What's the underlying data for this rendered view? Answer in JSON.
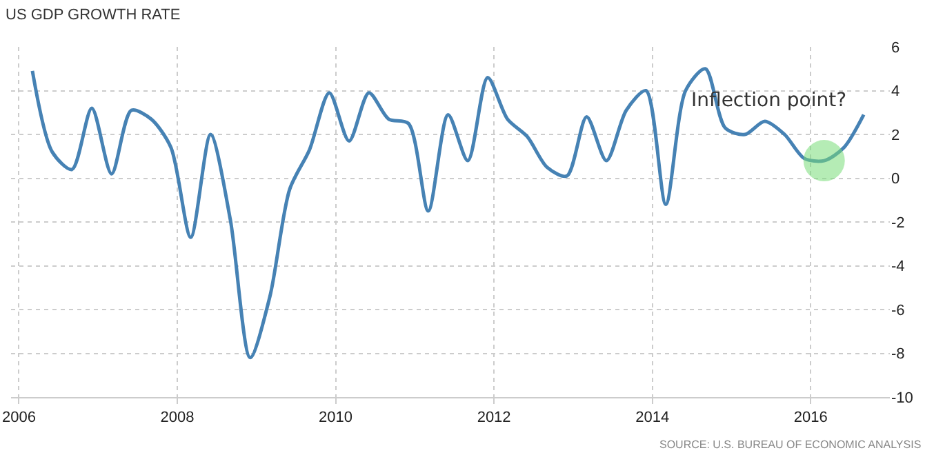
{
  "chart_data": {
    "type": "line",
    "title": "US GDP GROWTH RATE",
    "x": [
      2006.17,
      2006.42,
      2006.67,
      2006.92,
      2007.17,
      2007.42,
      2007.67,
      2007.92,
      2008.17,
      2008.42,
      2008.67,
      2008.92,
      2009.17,
      2009.42,
      2009.67,
      2009.92,
      2010.17,
      2010.42,
      2010.67,
      2010.92,
      2011.17,
      2011.42,
      2011.67,
      2011.92,
      2012.17,
      2012.42,
      2012.67,
      2012.92,
      2013.17,
      2013.42,
      2013.67,
      2013.92,
      2014.17,
      2014.42,
      2014.67,
      2014.92,
      2015.17,
      2015.42,
      2015.67,
      2015.92,
      2016.17,
      2016.42,
      2016.67
    ],
    "series": [
      {
        "color": "#4682b4",
        "values": [
          4.9,
          1.2,
          0.4,
          3.2,
          0.2,
          3.1,
          2.7,
          1.4,
          -2.7,
          2.0,
          -1.9,
          -8.2,
          -5.4,
          -0.5,
          1.3,
          3.9,
          1.7,
          3.9,
          2.7,
          2.5,
          -1.5,
          2.9,
          0.8,
          4.6,
          2.7,
          1.9,
          0.5,
          0.1,
          2.8,
          0.8,
          3.1,
          4.0,
          -1.2,
          4.0,
          5.0,
          2.3,
          2.0,
          2.6,
          2.0,
          0.9,
          0.8,
          1.4,
          2.9
        ]
      }
    ],
    "xlim": [
      2005.9,
      2017.0
    ],
    "xticks": [
      2006,
      2008,
      2010,
      2012,
      2014,
      2016
    ],
    "ylim": [
      -10,
      6
    ],
    "yticks": [
      -10,
      -8,
      -6,
      -4,
      -2,
      0,
      2,
      4,
      6
    ],
    "grid": true,
    "marker": "none",
    "line_style": "solid",
    "annotations": [
      {
        "text": "Inflection point?",
        "x": 2016.17,
        "y": 0.8
      },
      "SOURCE: U.S. BUREAU OF ECONOMIC ANALYSIS"
    ]
  }
}
